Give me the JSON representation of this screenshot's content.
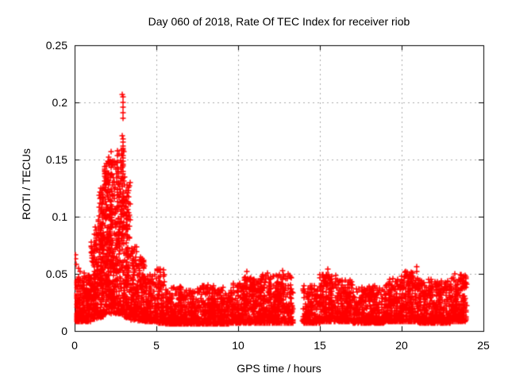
{
  "title": "Day 060 of 2018, Rate Of TEC Index for receiver riob",
  "chart_data": {
    "type": "scatter",
    "title": "Day 060 of 2018, Rate Of TEC Index for receiver riob",
    "xlabel": "GPS time / hours",
    "ylabel": "ROTI / TECUs",
    "xlim": [
      0,
      25
    ],
    "ylim": [
      0,
      0.25
    ],
    "xticks": [
      0,
      5,
      10,
      15,
      20,
      25
    ],
    "yticks": [
      0,
      0.05,
      0.1,
      0.15,
      0.2,
      0.25
    ],
    "xtick_labels": [
      "0",
      "5",
      "10",
      "15",
      "20",
      "25"
    ],
    "ytick_labels": [
      "0",
      "0.05",
      "0.1",
      "0.15",
      "0.2",
      "0.25"
    ],
    "grid": "dashed-major-both",
    "legend": "none",
    "marker": "plus",
    "marker_color": "#ff0000",
    "marker_size_px": 7,
    "grid_color": "#a9a9a9",
    "border_color": "#000000",
    "background_color": "#ffffff",
    "data_gap_hours": [
      13.35,
      13.95
    ],
    "data_start_hour": 0.0,
    "data_end_hour": 24.0,
    "max_point": {
      "x": 2.95,
      "y": 0.207
    },
    "point_clusters_format": [
      "x_start_h",
      "x_end_h",
      "y_low_TECU",
      "y_high_TECU",
      "n_points",
      "skew_exponent"
    ],
    "point_clusters": [
      [
        0.0,
        0.5,
        0.008,
        0.048,
        120,
        1.6
      ],
      [
        0.5,
        1.0,
        0.008,
        0.052,
        130,
        1.6
      ],
      [
        1.0,
        1.4,
        0.01,
        0.08,
        120,
        1.5
      ],
      [
        1.4,
        1.8,
        0.012,
        0.125,
        150,
        1.5
      ],
      [
        1.8,
        2.2,
        0.015,
        0.15,
        160,
        1.5
      ],
      [
        2.2,
        2.6,
        0.015,
        0.15,
        150,
        1.6
      ],
      [
        2.6,
        3.0,
        0.015,
        0.165,
        150,
        1.6
      ],
      [
        3.0,
        3.4,
        0.012,
        0.13,
        130,
        1.7
      ],
      [
        3.4,
        3.8,
        0.01,
        0.075,
        120,
        1.7
      ],
      [
        3.8,
        4.3,
        0.009,
        0.065,
        130,
        1.7
      ],
      [
        4.3,
        5.0,
        0.008,
        0.05,
        150,
        1.8
      ],
      [
        5.0,
        5.5,
        0.007,
        0.055,
        110,
        2.0
      ],
      [
        5.5,
        6.5,
        0.006,
        0.038,
        190,
        2.0
      ],
      [
        6.5,
        7.5,
        0.006,
        0.036,
        190,
        2.0
      ],
      [
        7.5,
        8.5,
        0.006,
        0.04,
        190,
        2.0
      ],
      [
        8.5,
        9.5,
        0.006,
        0.038,
        190,
        2.0
      ],
      [
        9.5,
        10.3,
        0.007,
        0.042,
        150,
        2.0
      ],
      [
        10.3,
        11.2,
        0.007,
        0.048,
        180,
        1.9
      ],
      [
        11.2,
        12.2,
        0.007,
        0.05,
        190,
        1.9
      ],
      [
        12.2,
        13.35,
        0.007,
        0.05,
        210,
        1.9
      ],
      [
        13.95,
        15.0,
        0.007,
        0.04,
        190,
        2.0
      ],
      [
        15.0,
        16.0,
        0.008,
        0.05,
        190,
        1.9
      ],
      [
        16.0,
        17.0,
        0.008,
        0.045,
        190,
        2.0
      ],
      [
        17.0,
        18.0,
        0.007,
        0.038,
        190,
        2.0
      ],
      [
        18.0,
        19.0,
        0.007,
        0.04,
        190,
        2.0
      ],
      [
        19.0,
        20.0,
        0.008,
        0.046,
        190,
        2.0
      ],
      [
        20.0,
        21.0,
        0.008,
        0.052,
        190,
        1.9
      ],
      [
        21.0,
        22.0,
        0.007,
        0.045,
        190,
        2.0
      ],
      [
        22.0,
        23.0,
        0.007,
        0.044,
        190,
        2.0
      ],
      [
        23.0,
        24.0,
        0.008,
        0.05,
        190,
        1.9
      ],
      [
        2.15,
        2.3,
        0.06,
        0.158,
        30,
        1.3
      ],
      [
        2.85,
        3.02,
        0.08,
        0.17,
        30,
        1.2
      ],
      [
        1.55,
        1.75,
        0.04,
        0.13,
        35,
        1.4
      ],
      [
        2.55,
        2.75,
        0.05,
        0.14,
        30,
        1.4
      ],
      [
        3.15,
        3.3,
        0.04,
        0.12,
        25,
        1.4
      ],
      [
        1.9,
        2.1,
        0.04,
        0.135,
        30,
        1.4
      ],
      [
        1.15,
        1.35,
        0.03,
        0.095,
        30,
        1.4
      ],
      [
        6.4,
        6.6,
        0.015,
        0.04,
        14,
        1.2
      ],
      [
        7.2,
        7.45,
        0.015,
        0.036,
        12,
        1.2
      ],
      [
        8.25,
        8.45,
        0.015,
        0.04,
        12,
        1.2
      ],
      [
        8.85,
        9.05,
        0.015,
        0.038,
        12,
        1.2
      ],
      [
        10.35,
        10.6,
        0.018,
        0.05,
        20,
        1.2
      ],
      [
        10.85,
        11.0,
        0.015,
        0.042,
        12,
        1.2
      ],
      [
        11.35,
        11.55,
        0.018,
        0.048,
        16,
        1.2
      ],
      [
        11.85,
        12.0,
        0.018,
        0.05,
        14,
        1.2
      ],
      [
        12.3,
        12.5,
        0.018,
        0.047,
        14,
        1.2
      ],
      [
        12.7,
        12.85,
        0.018,
        0.052,
        12,
        1.2
      ],
      [
        14.35,
        14.55,
        0.015,
        0.038,
        12,
        1.2
      ],
      [
        15.2,
        15.45,
        0.018,
        0.05,
        18,
        1.2
      ],
      [
        15.55,
        15.75,
        0.018,
        0.05,
        12,
        1.2
      ],
      [
        16.25,
        16.45,
        0.015,
        0.045,
        14,
        1.2
      ],
      [
        16.75,
        16.9,
        0.015,
        0.046,
        10,
        1.2
      ],
      [
        18.15,
        18.35,
        0.015,
        0.04,
        12,
        1.2
      ],
      [
        19.25,
        19.45,
        0.015,
        0.047,
        12,
        1.2
      ],
      [
        19.85,
        20.05,
        0.015,
        0.044,
        12,
        1.2
      ],
      [
        20.45,
        20.7,
        0.018,
        0.051,
        16,
        1.2
      ],
      [
        21.35,
        21.55,
        0.015,
        0.045,
        12,
        1.2
      ],
      [
        22.25,
        22.45,
        0.015,
        0.042,
        12,
        1.2
      ],
      [
        23.25,
        23.5,
        0.018,
        0.048,
        16,
        1.2
      ],
      [
        23.65,
        23.85,
        0.018,
        0.05,
        14,
        1.2
      ]
    ],
    "outlier_points": [
      [
        2.93,
        0.207
      ],
      [
        2.96,
        0.205
      ],
      [
        2.95,
        0.2
      ],
      [
        2.94,
        0.196
      ],
      [
        2.95,
        0.191
      ],
      [
        2.96,
        0.186
      ],
      [
        2.93,
        0.171
      ],
      [
        2.97,
        0.168
      ],
      [
        2.88,
        0.158
      ],
      [
        2.6,
        0.148
      ],
      [
        2.62,
        0.143
      ],
      [
        2.42,
        0.145
      ],
      [
        2.1,
        0.152
      ],
      [
        3.05,
        0.135
      ],
      [
        3.22,
        0.128
      ],
      [
        0.03,
        0.067
      ],
      [
        0.06,
        0.063
      ],
      [
        0.1,
        0.058
      ],
      [
        0.22,
        0.055
      ],
      [
        0.35,
        0.052
      ],
      [
        10.55,
        0.052
      ],
      [
        11.8,
        0.051
      ],
      [
        12.6,
        0.041
      ],
      [
        12.7,
        0.053
      ],
      [
        14.05,
        0.033
      ],
      [
        15.5,
        0.054
      ],
      [
        20.5,
        0.05
      ],
      [
        20.9,
        0.056
      ],
      [
        23.6,
        0.049
      ]
    ]
  }
}
